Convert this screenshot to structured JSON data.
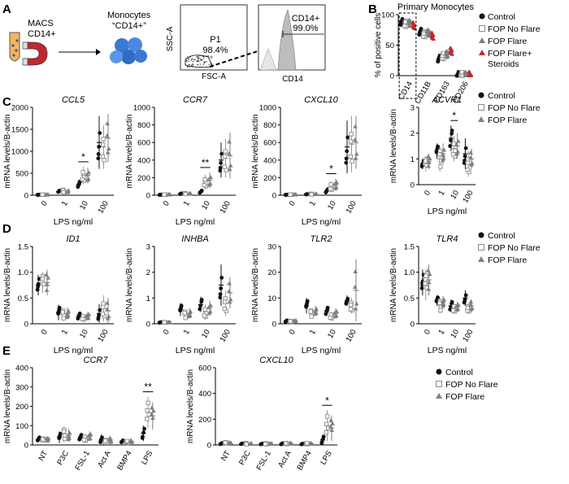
{
  "panel_letters": [
    "A",
    "B",
    "C",
    "D",
    "E"
  ],
  "panel_a": {
    "macs_label_1": "MACS",
    "macs_label_2": "CD14+",
    "monocytes_label_1": "Monocytes",
    "monocytes_label_2": "“CD14+”",
    "gate1": {
      "xlabel": "FSC-A",
      "ylabel": "SSC-A",
      "gate_name": "P1",
      "gate_value": "98.4%"
    },
    "gate2": {
      "xlabel": "CD14",
      "gate_name": "CD14+",
      "gate_value": "99.0%"
    }
  },
  "legend_sets": {
    "B": [
      "Control",
      "FOP No Flare",
      "FOP Flare",
      "FOP Flare+",
      "Steroids"
    ],
    "std": [
      "Control",
      "FOP No Flare",
      "FOP Flare"
    ]
  },
  "colors": {
    "control": "#111111",
    "no_flare": "#9a9a9a",
    "flare": "#7f7f7f",
    "steroid": "#c0282d",
    "gate_fill": "#bdbdbd"
  },
  "common": {
    "ylabel": "mRNA levels/B-actin",
    "xlabel": "LPS ng/ml",
    "lps_ticks": [
      "0",
      "1",
      "10",
      "100"
    ]
  },
  "chart_data": [
    {
      "id": "B",
      "type": "scatter",
      "title": "Primary Monocytes",
      "ylabel": "% of positive cells",
      "categories": [
        "CD14",
        "CD11B",
        "CD163",
        "CD206"
      ],
      "ylim": [
        0,
        100
      ],
      "yticks": [
        "0",
        "50",
        "100"
      ],
      "series": [
        {
          "name": "Control",
          "means": [
            88,
            72,
            28,
            1
          ]
        },
        {
          "name": "FOP No Flare",
          "means": [
            85,
            68,
            32,
            1
          ]
        },
        {
          "name": "FOP Flare",
          "means": [
            86,
            70,
            35,
            1
          ]
        },
        {
          "name": "FOP Flare+ Steroids",
          "means": [
            82,
            65,
            40,
            1
          ]
        }
      ]
    },
    {
      "id": "C1",
      "type": "scatter",
      "title": "CCL5",
      "ylim": [
        0,
        2000
      ],
      "yticks": [
        "0",
        "500",
        "1000",
        "1500",
        "2000"
      ],
      "series": [
        {
          "name": "Control",
          "means": [
            10,
            80,
            250,
            1200
          ],
          "sd": [
            5,
            40,
            100,
            600
          ]
        },
        {
          "name": "FOP No Flare",
          "means": [
            12,
            95,
            450,
            1100
          ],
          "sd": [
            6,
            45,
            200,
            500
          ]
        },
        {
          "name": "FOP Flare",
          "means": [
            11,
            90,
            450,
            1300
          ],
          "sd": [
            5,
            45,
            180,
            550
          ]
        }
      ],
      "sig": [
        {
          "cat": 2,
          "text": "*"
        }
      ]
    },
    {
      "id": "C2",
      "type": "scatter",
      "title": "CCR7",
      "ylim": [
        0,
        1000
      ],
      "yticks": [
        "0",
        "200",
        "400",
        "600",
        "800",
        "1000"
      ],
      "series": [
        {
          "name": "Control",
          "means": [
            5,
            15,
            40,
            400
          ],
          "sd": [
            3,
            8,
            20,
            200
          ]
        },
        {
          "name": "FOP No Flare",
          "means": [
            6,
            18,
            150,
            420
          ],
          "sd": [
            3,
            8,
            80,
            220
          ]
        },
        {
          "name": "FOP Flare",
          "means": [
            6,
            18,
            170,
            450
          ],
          "sd": [
            3,
            8,
            90,
            260
          ]
        }
      ],
      "sig": [
        {
          "cat": 2,
          "text": "**"
        }
      ]
    },
    {
      "id": "C3",
      "type": "scatter",
      "title": "CXCL10",
      "ylim": [
        0,
        1000
      ],
      "yticks": [
        "0",
        "200",
        "400",
        "600",
        "800",
        "1000"
      ],
      "series": [
        {
          "name": "Control",
          "means": [
            5,
            10,
            50,
            550
          ],
          "sd": [
            3,
            5,
            30,
            300
          ]
        },
        {
          "name": "FOP No Flare",
          "means": [
            6,
            12,
            100,
            580
          ],
          "sd": [
            3,
            6,
            60,
            320
          ]
        },
        {
          "name": "FOP Flare",
          "means": [
            6,
            12,
            120,
            600
          ],
          "sd": [
            3,
            6,
            70,
            300
          ]
        }
      ],
      "sig": [
        {
          "cat": 2,
          "text": "*"
        }
      ]
    },
    {
      "id": "C4",
      "type": "scatter",
      "title": "ACVR1",
      "ylim": [
        0,
        3
      ],
      "yticks": [
        "0",
        "1",
        "2",
        "3"
      ],
      "series": [
        {
          "name": "Control",
          "means": [
            0.8,
            1.3,
            1.8,
            1.2
          ],
          "sd": [
            0.2,
            0.3,
            0.5,
            0.6
          ]
        },
        {
          "name": "FOP No Flare",
          "means": [
            0.8,
            1.0,
            1.4,
            0.8
          ],
          "sd": [
            0.3,
            0.5,
            0.5,
            0.5
          ]
        },
        {
          "name": "FOP Flare",
          "means": [
            0.9,
            1.2,
            1.5,
            1.0
          ],
          "sd": [
            0.3,
            0.4,
            0.5,
            0.4
          ]
        }
      ],
      "sig": [
        {
          "cat": 2,
          "text": "*"
        }
      ]
    },
    {
      "id": "D1",
      "type": "scatter",
      "title": "ID1",
      "ylim": [
        0,
        1.5
      ],
      "yticks": [
        "0",
        "0.5",
        "1.0",
        "1.5"
      ],
      "series": [
        {
          "name": "Control",
          "means": [
            0.75,
            0.22,
            0.15,
            0.2
          ],
          "sd": [
            0.2,
            0.15,
            0.08,
            0.18
          ]
        },
        {
          "name": "FOP No Flare",
          "means": [
            0.8,
            0.18,
            0.12,
            0.3
          ],
          "sd": [
            0.2,
            0.12,
            0.06,
            0.25
          ]
        },
        {
          "name": "FOP Flare",
          "means": [
            0.8,
            0.2,
            0.15,
            0.25
          ],
          "sd": [
            0.25,
            0.12,
            0.08,
            0.25
          ]
        }
      ]
    },
    {
      "id": "D2",
      "type": "scatter",
      "title": "INHBA",
      "ylim": [
        0,
        3
      ],
      "yticks": [
        "0",
        "1",
        "2",
        "3"
      ],
      "series": [
        {
          "name": "Control",
          "means": [
            0.05,
            0.55,
            0.75,
            1.5
          ],
          "sd": [
            0.02,
            0.25,
            0.3,
            0.8
          ]
        },
        {
          "name": "FOP No Flare",
          "means": [
            0.05,
            0.35,
            0.45,
            0.8
          ],
          "sd": [
            0.02,
            0.2,
            0.3,
            0.5
          ]
        },
        {
          "name": "FOP Flare",
          "means": [
            0.05,
            0.4,
            0.6,
            1.2
          ],
          "sd": [
            0.02,
            0.2,
            0.3,
            0.6
          ]
        }
      ]
    },
    {
      "id": "D3",
      "type": "scatter",
      "title": "TLR2",
      "ylim": [
        0,
        30
      ],
      "yticks": [
        "0",
        "10",
        "20",
        "30"
      ],
      "series": [
        {
          "name": "Control",
          "means": [
            1,
            7,
            5,
            9
          ],
          "sd": [
            0.5,
            3,
            2,
            2
          ]
        },
        {
          "name": "FOP No Flare",
          "means": [
            0.8,
            4,
            3,
            7
          ],
          "sd": [
            0.4,
            2,
            1.5,
            3
          ]
        },
        {
          "name": "FOP Flare",
          "means": [
            1,
            5,
            4,
            13
          ],
          "sd": [
            0.5,
            2,
            2,
            12
          ]
        }
      ]
    },
    {
      "id": "D4",
      "type": "scatter",
      "title": "TLR4",
      "ylim": [
        0,
        1.5
      ],
      "yticks": [
        "0",
        "0.5",
        "1.0",
        "1.5"
      ],
      "series": [
        {
          "name": "Control",
          "means": [
            0.8,
            0.45,
            0.35,
            0.5
          ],
          "sd": [
            0.25,
            0.1,
            0.12,
            0.15
          ]
        },
        {
          "name": "FOP No Flare",
          "means": [
            0.75,
            0.35,
            0.3,
            0.3
          ],
          "sd": [
            0.3,
            0.15,
            0.1,
            0.1
          ]
        },
        {
          "name": "FOP Flare",
          "means": [
            0.85,
            0.42,
            0.33,
            0.35
          ],
          "sd": [
            0.3,
            0.12,
            0.1,
            0.12
          ]
        }
      ]
    },
    {
      "id": "E1",
      "type": "scatter",
      "title": "CCR7",
      "ylim": [
        0,
        400
      ],
      "yticks": [
        "0",
        "100",
        "200",
        "300",
        "400"
      ],
      "categories": [
        "NT",
        "P3C",
        "FSL-1",
        "Act A",
        "BMP4",
        "LPS"
      ],
      "series": [
        {
          "name": "Control",
          "means": [
            30,
            40,
            40,
            30,
            20,
            60
          ],
          "sd": [
            15,
            30,
            20,
            25,
            10,
            40
          ]
        },
        {
          "name": "FOP No Flare",
          "means": [
            25,
            55,
            35,
            20,
            15,
            170
          ],
          "sd": [
            12,
            40,
            20,
            15,
            8,
            80
          ]
        },
        {
          "name": "FOP Flare",
          "means": [
            28,
            50,
            45,
            25,
            18,
            150
          ],
          "sd": [
            12,
            35,
            25,
            18,
            10,
            70
          ]
        }
      ],
      "sig": [
        {
          "cat": 5,
          "text": "**"
        }
      ]
    },
    {
      "id": "E2",
      "type": "scatter",
      "title": "CXCL10",
      "ylim": [
        0,
        600
      ],
      "yticks": [
        "0",
        "200",
        "400",
        "600"
      ],
      "categories": [
        "NT",
        "P3C",
        "FSL-1",
        "Act A",
        "BMP4",
        "LPS"
      ],
      "series": [
        {
          "name": "Control",
          "means": [
            10,
            8,
            8,
            10,
            8,
            40
          ],
          "sd": [
            8,
            6,
            5,
            8,
            5,
            40
          ]
        },
        {
          "name": "FOP No Flare",
          "means": [
            15,
            10,
            10,
            12,
            10,
            150
          ],
          "sd": [
            10,
            8,
            8,
            8,
            6,
            120
          ]
        },
        {
          "name": "FOP Flare",
          "means": [
            12,
            10,
            10,
            12,
            10,
            130
          ],
          "sd": [
            10,
            8,
            6,
            8,
            6,
            100
          ]
        }
      ],
      "sig": [
        {
          "cat": 5,
          "text": "*"
        }
      ]
    }
  ]
}
